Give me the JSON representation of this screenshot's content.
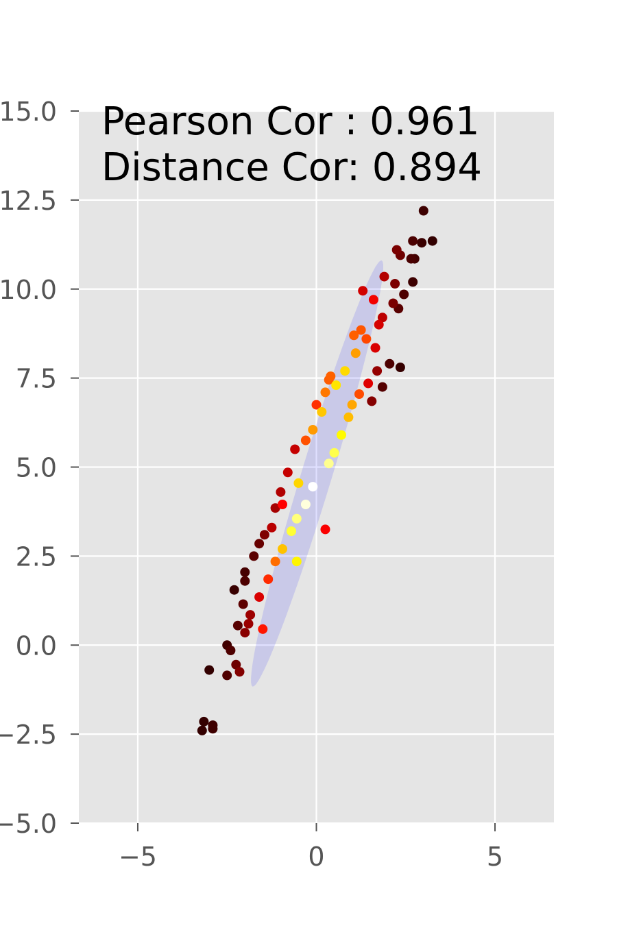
{
  "chart_data": {
    "type": "scatter",
    "title": "",
    "xlabel": "",
    "ylabel": "",
    "xlim": [
      -6.65,
      6.65
    ],
    "ylim": [
      -5.0,
      15.0
    ],
    "x_ticks": [
      -5,
      0,
      5
    ],
    "x_tick_labels": [
      "−5",
      "0",
      "5"
    ],
    "y_ticks": [
      -5.0,
      -2.5,
      0.0,
      2.5,
      5.0,
      7.5,
      10.0,
      12.5,
      15.0
    ],
    "y_tick_labels": [
      "−5.0",
      "−2.5",
      "0.0",
      "2.5",
      "5.0",
      "7.5",
      "10.0",
      "12.5",
      "15.0"
    ],
    "grid": true,
    "colormap": "hot",
    "annotations": [
      "Pearson Cor : 0.961",
      "Distance Cor: 0.894"
    ],
    "confidence_ellipse": {
      "center": [
        0.02,
        4.82
      ],
      "angle_deg": 73.2,
      "semi_major": 6.25,
      "semi_minor": 0.43,
      "fill": "#0000ff",
      "opacity": 0.12
    },
    "series": [
      {
        "points": [
          [
            3.0,
            12.2
          ],
          [
            2.7,
            11.35
          ],
          [
            3.25,
            11.35
          ],
          [
            2.95,
            11.3
          ],
          [
            2.25,
            11.1
          ],
          [
            2.35,
            10.95
          ],
          [
            2.75,
            10.85
          ],
          [
            2.65,
            10.85
          ],
          [
            1.9,
            10.35
          ],
          [
            2.2,
            10.15
          ],
          [
            2.7,
            10.2
          ],
          [
            1.3,
            9.95
          ],
          [
            1.6,
            9.7
          ],
          [
            2.45,
            9.85
          ],
          [
            2.15,
            9.6
          ],
          [
            2.3,
            9.45
          ],
          [
            1.85,
            9.2
          ],
          [
            1.75,
            9.0
          ],
          [
            1.25,
            8.85
          ],
          [
            1.05,
            8.7
          ],
          [
            2.35,
            7.8
          ],
          [
            2.05,
            7.9
          ],
          [
            1.85,
            7.25
          ],
          [
            1.55,
            6.85
          ],
          [
            0.4,
            7.55
          ],
          [
            0.35,
            7.45
          ],
          [
            0.25,
            7.1
          ],
          [
            -0.6,
            5.5
          ],
          [
            -0.5,
            4.55
          ],
          [
            -1.0,
            4.3
          ],
          [
            -0.95,
            3.95
          ],
          [
            0.25,
            3.25
          ],
          [
            -0.55,
            2.35
          ],
          [
            -1.45,
            3.1
          ],
          [
            -1.6,
            2.85
          ],
          [
            -2.0,
            2.05
          ],
          [
            -2.3,
            1.55
          ],
          [
            -2.2,
            0.55
          ],
          [
            -2.0,
            0.35
          ],
          [
            -1.5,
            0.45
          ],
          [
            -2.5,
            0.0
          ],
          [
            -2.4,
            -0.15
          ],
          [
            -2.25,
            -0.55
          ],
          [
            -2.15,
            -0.75
          ],
          [
            -3.0,
            -0.7
          ],
          [
            -2.5,
            -0.85
          ],
          [
            -3.15,
            -2.15
          ],
          [
            -2.9,
            -2.25
          ],
          [
            -2.9,
            -2.35
          ],
          [
            -3.2,
            -2.4
          ],
          [
            1.65,
            8.35
          ],
          [
            1.7,
            7.7
          ],
          [
            1.45,
            7.35
          ],
          [
            1.2,
            7.05
          ],
          [
            0.9,
            6.4
          ],
          [
            1.0,
            6.75
          ],
          [
            0.7,
            5.9
          ],
          [
            0.5,
            5.4
          ],
          [
            0.35,
            5.1
          ],
          [
            -0.1,
            4.45
          ],
          [
            -0.3,
            3.95
          ],
          [
            -0.55,
            3.55
          ],
          [
            -0.7,
            3.2
          ],
          [
            -0.95,
            2.7
          ],
          [
            -1.15,
            2.35
          ],
          [
            -1.35,
            1.85
          ],
          [
            -1.6,
            1.35
          ],
          [
            -1.85,
            0.85
          ],
          [
            -2.05,
            1.15
          ],
          [
            -1.9,
            0.6
          ],
          [
            -0.1,
            6.05
          ],
          [
            0.15,
            6.55
          ],
          [
            0.0,
            6.75
          ],
          [
            -0.3,
            5.75
          ],
          [
            -0.8,
            4.85
          ],
          [
            -1.15,
            3.85
          ],
          [
            -1.25,
            3.3
          ],
          [
            -1.75,
            2.5
          ],
          [
            -2.0,
            1.8
          ],
          [
            1.1,
            8.2
          ],
          [
            0.8,
            7.7
          ],
          [
            0.55,
            7.3
          ],
          [
            1.4,
            8.6
          ]
        ]
      }
    ]
  }
}
